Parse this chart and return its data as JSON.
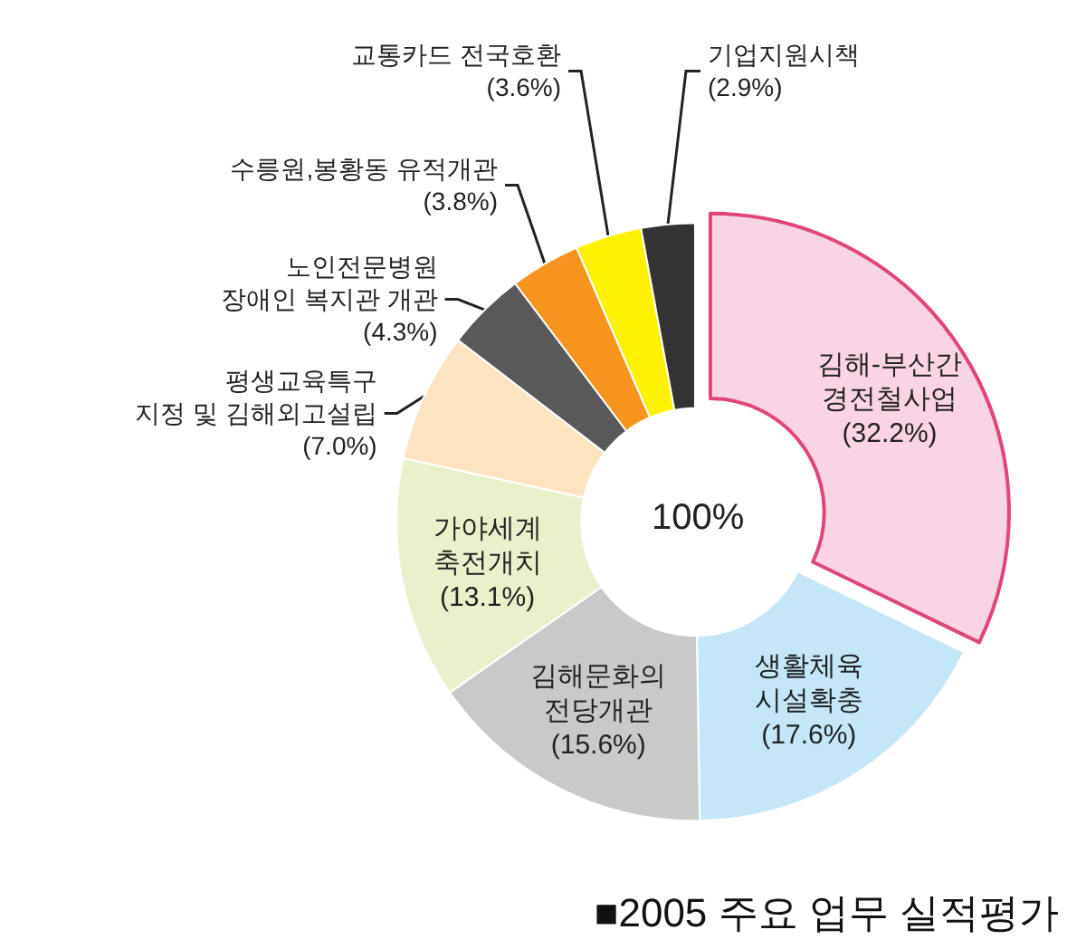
{
  "chart_data": {
    "type": "donut",
    "title": "■2005 주요 업무 실적평가",
    "categories": [
      "김해-부산간 경전철사업",
      "생활체육 시설확충",
      "김해문화의 전당개관",
      "가야세계 축전개치",
      "평생교육특구 지정 및 김해외고설립",
      "노인전문병원 장애인 복지관 개관",
      "수릉원,봉황동 유적개관",
      "교통카드 전국호환",
      "기업지원시책"
    ],
    "values": [
      32.2,
      17.6,
      15.6,
      13.1,
      7.0,
      4.3,
      3.8,
      3.6,
      2.9
    ],
    "value_labels": [
      "(32.2%)",
      "(17.6%)",
      "(15.6%)",
      "(13.1%)",
      "(7.0%)",
      "(4.3%)",
      "(3.8%)",
      "(3.6%)",
      "(2.9%)"
    ],
    "colors": [
      "#f9d4e4",
      "#c4e6f7",
      "#c9c9c9",
      "#e9f1cc",
      "#fde3bf",
      "#595959",
      "#f7941d",
      "#fff200",
      "#333333"
    ],
    "annotations": [
      "100%"
    ],
    "legend": false
  }
}
